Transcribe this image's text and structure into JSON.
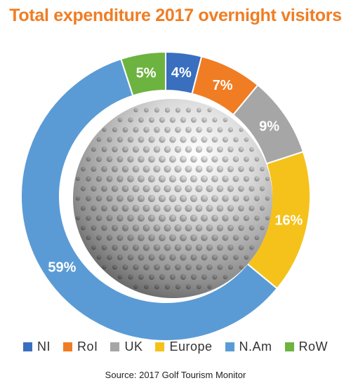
{
  "chart_data": {
    "type": "pie",
    "style": "donut",
    "title": "Total expenditure 2017 overnight visitors",
    "title_color": "#F07D23",
    "categories": [
      "NI",
      "RoI",
      "UK",
      "Europe",
      "N.Am",
      "RoW"
    ],
    "values": [
      4,
      7,
      9,
      16,
      59,
      5
    ],
    "labels": [
      "4%",
      "7%",
      "9%",
      "16%",
      "59%",
      "5%"
    ],
    "colors": [
      "#3A6FBF",
      "#F07D23",
      "#A6A6A6",
      "#F5C21B",
      "#5B9BD5",
      "#6DB33F"
    ],
    "legend_position": "bottom",
    "center_image": "golf-ball",
    "source": "Source: 2017 Golf Tourism Monitor"
  }
}
